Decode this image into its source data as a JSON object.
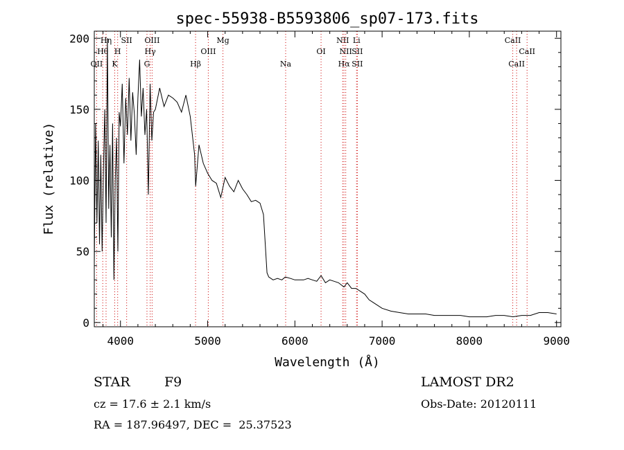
{
  "chart_data": {
    "type": "line",
    "title": "spec-55938-B5593806_sp07-173.fits",
    "xlabel": "Wavelength (Å)",
    "ylabel": "Flux (relative)",
    "xlim": [
      3700,
      9050
    ],
    "ylim": [
      -3,
      205
    ],
    "xticks": [
      4000,
      5000,
      6000,
      7000,
      8000,
      9000
    ],
    "yticks": [
      0,
      50,
      100,
      150,
      200
    ],
    "grid": false,
    "line_color": "#000000",
    "marker_color": "#cc0000",
    "series": [
      {
        "x": [
          3700,
          3715,
          3730,
          3745,
          3760,
          3775,
          3790,
          3805,
          3820,
          3835,
          3850,
          3865,
          3880,
          3895,
          3910,
          3925,
          3940,
          3955,
          3970,
          3985,
          4000,
          4020,
          4040,
          4060,
          4080,
          4100,
          4120,
          4140,
          4160,
          4180,
          4200,
          4220,
          4240,
          4260,
          4280,
          4300,
          4320,
          4340,
          4360,
          4380,
          4400,
          4450,
          4500,
          4550,
          4600,
          4650,
          4700,
          4750,
          4800,
          4850,
          4862,
          4900,
          4950,
          5000,
          5050,
          5100,
          5150,
          5200,
          5250,
          5300,
          5350,
          5400,
          5450,
          5500,
          5550,
          5600,
          5640,
          5660,
          5680,
          5700,
          5750,
          5800,
          5850,
          5890,
          5950,
          6000,
          6050,
          6100,
          6150,
          6200,
          6250,
          6300,
          6350,
          6400,
          6450,
          6500,
          6563,
          6600,
          6650,
          6700,
          6750,
          6800,
          6850,
          6900,
          6950,
          7000,
          7100,
          7200,
          7300,
          7400,
          7500,
          7600,
          7700,
          7800,
          7900,
          8000,
          8100,
          8200,
          8300,
          8400,
          8500,
          8600,
          8700,
          8800,
          8900,
          9000
        ],
        "y": [
          40,
          140,
          70,
          128,
          55,
          118,
          50,
          108,
          150,
          70,
          200,
          80,
          125,
          60,
          140,
          30,
          100,
          130,
          50,
          148,
          138,
          168,
          112,
          158,
          132,
          172,
          128,
          162,
          146,
          118,
          158,
          185,
          145,
          165,
          132,
          150,
          90,
          168,
          128,
          148,
          150,
          165,
          152,
          160,
          158,
          155,
          148,
          160,
          145,
          118,
          96,
          125,
          112,
          105,
          100,
          98,
          88,
          102,
          96,
          92,
          100,
          94,
          90,
          85,
          86,
          84,
          76,
          55,
          35,
          32,
          30,
          31,
          30,
          32,
          31,
          30,
          30,
          30,
          31,
          30,
          29,
          33,
          28,
          30,
          29,
          28,
          25,
          28,
          24,
          24,
          22,
          20,
          16,
          14,
          12,
          10,
          8,
          7,
          6,
          6,
          6,
          5,
          5,
          5,
          5,
          4,
          4,
          4,
          5,
          5,
          4,
          5,
          5,
          7,
          7,
          6
        ]
      }
    ],
    "lines": [
      {
        "wl": 3727,
        "labels": [
          {
            "text": "OII",
            "row": 3
          }
        ]
      },
      {
        "wl": 3797,
        "labels": [
          {
            "text": "Hθ",
            "row": 2
          }
        ]
      },
      {
        "wl": 3835,
        "labels": [
          {
            "text": "Hη",
            "row": 1
          }
        ]
      },
      {
        "wl": 3934,
        "labels": [
          {
            "text": "K",
            "row": 3
          }
        ]
      },
      {
        "wl": 3968,
        "labels": [
          {
            "text": "H",
            "row": 2
          }
        ]
      },
      {
        "wl": 4071,
        "labels": [
          {
            "text": "SII",
            "row": 1
          }
        ]
      },
      {
        "wl": 4304,
        "labels": [
          {
            "text": "G",
            "row": 3
          }
        ]
      },
      {
        "wl": 4341,
        "labels": [
          {
            "text": "Hγ",
            "row": 2
          }
        ]
      },
      {
        "wl": 4363,
        "labels": [
          {
            "text": "OIII",
            "row": 1
          }
        ]
      },
      {
        "wl": 4861,
        "labels": [
          {
            "text": "Hβ",
            "row": 3
          }
        ]
      },
      {
        "wl": 5007,
        "labels": [
          {
            "text": "OIII",
            "row": 2
          }
        ]
      },
      {
        "wl": 5175,
        "labels": [
          {
            "text": "Mg",
            "row": 1
          }
        ]
      },
      {
        "wl": 5894,
        "labels": [
          {
            "text": "Na",
            "row": 3
          }
        ]
      },
      {
        "wl": 6300,
        "labels": [
          {
            "text": "OI",
            "row": 2
          }
        ]
      },
      {
        "wl": 6548,
        "labels": [
          {
            "text": "NII",
            "row": 1
          }
        ]
      },
      {
        "wl": 6563,
        "labels": [
          {
            "text": "Hα",
            "row": 3
          }
        ]
      },
      {
        "wl": 6583,
        "labels": [
          {
            "text": "NII",
            "row": 2
          }
        ]
      },
      {
        "wl": 6707,
        "labels": [
          {
            "text": "Li",
            "row": 1
          }
        ]
      },
      {
        "wl": 6716,
        "labels": [
          {
            "text": "SII",
            "row": 2
          },
          {
            "text": "SII",
            "row": 3
          }
        ]
      },
      {
        "wl": 8498,
        "labels": [
          {
            "text": "CaII",
            "row": 1
          }
        ]
      },
      {
        "wl": 8542,
        "labels": [
          {
            "text": "CaII",
            "row": 3
          }
        ]
      },
      {
        "wl": 8662,
        "labels": [
          {
            "text": "CaII",
            "row": 2
          }
        ]
      }
    ]
  },
  "info": {
    "object_class": "STAR",
    "subclass": "F9",
    "redshift": "cz = 17.6 ± 2.1 km/s",
    "coords": "RA = 187.96497, DEC =  25.37523",
    "survey": "LAMOST DR2",
    "obs_date": "Obs-Date: 20120111"
  }
}
